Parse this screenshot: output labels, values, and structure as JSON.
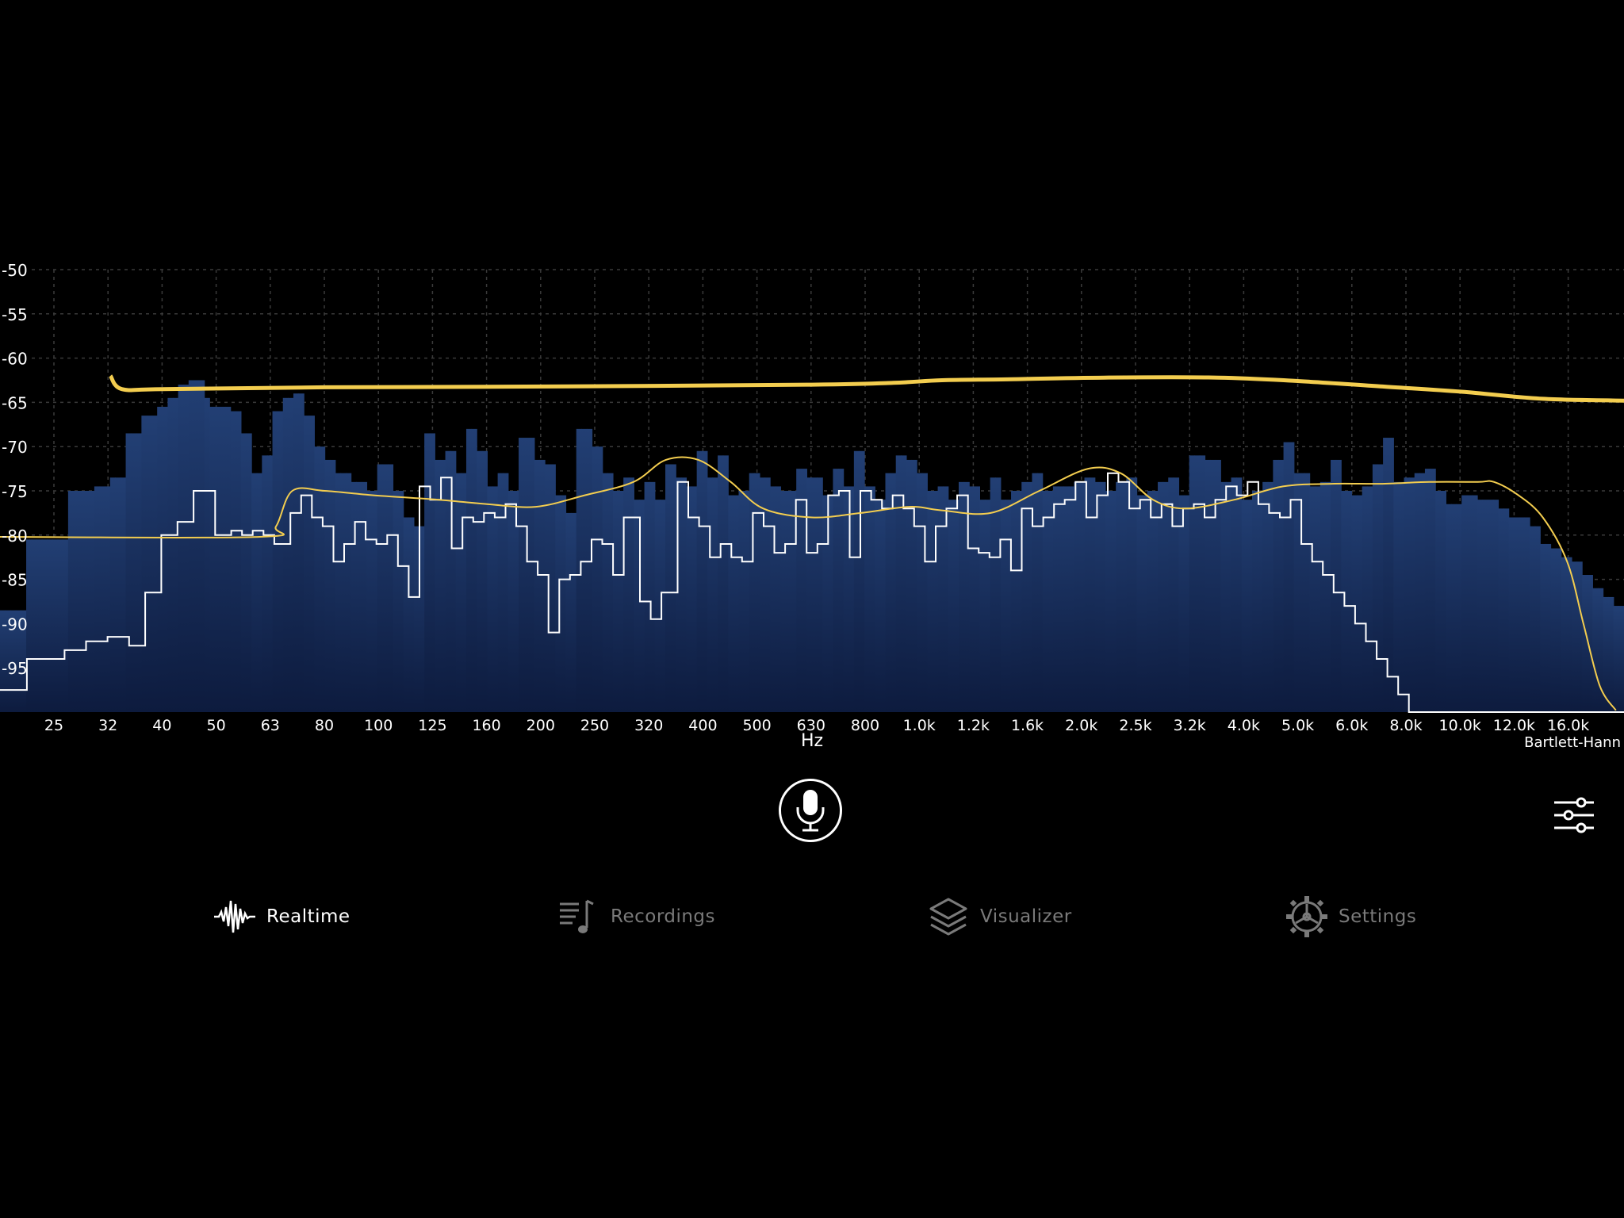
{
  "chart_data": {
    "type": "bar",
    "x_scale": "log",
    "x_unit": "Hz",
    "y_range": [
      -100,
      -50
    ],
    "grid": true,
    "y_ticks": [
      -50,
      -55,
      -60,
      -65,
      -70,
      -75,
      -80,
      -85,
      -90,
      -95
    ],
    "x_ticks": [
      "25",
      "32",
      "40",
      "50",
      "63",
      "80",
      "100",
      "125",
      "160",
      "200",
      "250",
      "320",
      "400",
      "500",
      "630",
      "800",
      "1.0k",
      "1.2k",
      "1.6k",
      "2.0k",
      "2.5k",
      "3.2k",
      "4.0k",
      "5.0k",
      "6.0k",
      "8.0k",
      "10.0k",
      "12.0k",
      "16.0k"
    ],
    "peak_bars": [
      -88.5,
      -88.5,
      -88.5,
      -88.5,
      -88.5,
      -80.5,
      -80.5,
      -80.5,
      -80.5,
      -80.5,
      -80.5,
      -80.5,
      -80.5,
      -75,
      -75,
      -75,
      -75,
      -75,
      -74.5,
      -74.5,
      -74.5,
      -73.5,
      -73.5,
      -73.5,
      -68.5,
      -68.5,
      -68.5,
      -66.5,
      -66.5,
      -66.5,
      -65.5,
      -65.5,
      -64.5,
      -64.5,
      -63,
      -63,
      -62.5,
      -62.5,
      -62.5,
      -64.5,
      -65.5,
      -65.5,
      -65.5,
      -65.5,
      -66,
      -66,
      -68.5,
      -68.5,
      -73,
      -73,
      -71,
      -71,
      -66,
      -66,
      -64.5,
      -64.5,
      -64,
      -64,
      -66.5,
      -66.5,
      -70,
      -70,
      -71.5,
      -71.5,
      -73,
      -73,
      -73,
      -74,
      -74,
      -74,
      -75,
      -75,
      -72,
      -72,
      -72,
      -75,
      -75,
      -78,
      -78,
      -79,
      -79,
      -68.5,
      -68.5,
      -71.5,
      -71.5,
      -70.5,
      -70.5,
      -73,
      -73,
      -68,
      -68,
      -70.5,
      -70.5,
      -74.5,
      -74.5,
      -73,
      -73,
      -75,
      -75,
      -69,
      -69,
      -69,
      -71.5,
      -71.5,
      -72,
      -72,
      -75.5,
      -75.5,
      -77.5,
      -77.5,
      -68,
      -68,
      -68,
      -70,
      -70,
      -73,
      -73,
      -75,
      -75,
      -73.5,
      -73.5,
      -76,
      -76,
      -74,
      -74,
      -76,
      -76,
      -72,
      -72,
      -73.5,
      -73.5,
      -74.5,
      -74.5,
      -70.5,
      -70.5,
      -73.5,
      -73.5,
      -71,
      -71,
      -75.5,
      -75.5,
      -75,
      -75,
      -73,
      -73,
      -73.5,
      -73.5,
      -74.5,
      -74.5,
      -75,
      -75,
      -75,
      -72.5,
      -72.5,
      -73.5,
      -73.5,
      -73.5,
      -75.5,
      -75.5,
      -72.5,
      -72.5,
      -74.5,
      -74.5,
      -70.5,
      -70.5,
      -74.5,
      -74.5,
      -76,
      -76,
      -73,
      -73,
      -71,
      -71,
      -71.5,
      -71.5,
      -73,
      -73,
      -75,
      -75,
      -74.5,
      -74.5,
      -76,
      -76,
      -74,
      -74,
      -74.5,
      -74.5,
      -76,
      -76,
      -73.5,
      -73.5,
      -76,
      -76,
      -75,
      -75,
      -74,
      -74,
      -73,
      -73,
      -75,
      -75,
      -74.5,
      -74.5,
      -74.5,
      -74.5,
      -74,
      -74,
      -73.5,
      -73.5,
      -74,
      -74,
      -75,
      -75,
      -74,
      -74,
      -73.5,
      -73.5,
      -75.5,
      -75.5,
      -75,
      -75,
      -74,
      -74,
      -73.5,
      -73.5,
      -75.5,
      -75.5,
      -71,
      -71,
      -71,
      -71.5,
      -71.5,
      -71.5,
      -74,
      -74,
      -73.5,
      -73.5,
      -76,
      -76,
      -75,
      -75,
      -74,
      -74,
      -71.5,
      -71.5,
      -69.5,
      -69.5,
      -73,
      -73,
      -73,
      -74.5,
      -74.5,
      -74,
      -74,
      -71.5,
      -71.5,
      -75,
      -75,
      -75.5,
      -75.5,
      -74.5,
      -74.5,
      -72,
      -72,
      -69,
      -69,
      -74,
      -74,
      -73.5,
      -73.5,
      -73,
      -73,
      -72.5,
      -72.5,
      -75,
      -75,
      -76.5,
      -76.5,
      -76.5,
      -75.5,
      -75.5,
      -75.5,
      -76,
      -76,
      -76,
      -76,
      -77,
      -77,
      -78,
      -78,
      -78,
      -78,
      -79,
      -79,
      -81,
      -81,
      -81.5,
      -81.5,
      -82.5,
      -82.5,
      -83,
      -83,
      -84.5,
      -84.5,
      -86,
      -86,
      -87,
      -87,
      -88,
      -88
    ],
    "current_level": [
      -97.5,
      -97.5,
      -97.5,
      -97.5,
      -97.5,
      -94,
      -94,
      -94,
      -94,
      -94,
      -94,
      -94,
      -93,
      -93,
      -93,
      -93,
      -92,
      -92,
      -92,
      -92,
      -91.5,
      -91.5,
      -91.5,
      -91.5,
      -92.5,
      -92.5,
      -92.5,
      -86.5,
      -86.5,
      -86.5,
      -80,
      -80,
      -80,
      -78.5,
      -78.5,
      -78.5,
      -75,
      -75,
      -75,
      -75,
      -80,
      -80,
      -80,
      -79.5,
      -79.5,
      -80,
      -80,
      -79.5,
      -79.5,
      -80,
      -80,
      -81,
      -81,
      -81,
      -77.5,
      -77.5,
      -75.5,
      -75.5,
      -78,
      -78,
      -79,
      -79,
      -83,
      -83,
      -81,
      -81,
      -78.5,
      -78.5,
      -80.5,
      -80.5,
      -81,
      -81,
      -80,
      -80,
      -83.5,
      -83.5,
      -87,
      -87,
      -74.5,
      -74.5,
      -76,
      -76,
      -73.5,
      -73.5,
      -81.5,
      -81.5,
      -78,
      -78,
      -78.5,
      -78.5,
      -77.5,
      -77.5,
      -78,
      -78,
      -76.5,
      -76.5,
      -79,
      -79,
      -83,
      -83,
      -84.5,
      -84.5,
      -91,
      -91,
      -85,
      -85,
      -84.5,
      -84.5,
      -83,
      -83,
      -80.5,
      -80.5,
      -81,
      -81,
      -84.5,
      -84.5,
      -78,
      -78,
      -78,
      -87.5,
      -87.5,
      -89.5,
      -89.5,
      -86.5,
      -86.5,
      -86.5,
      -74,
      -74,
      -78,
      -78,
      -79,
      -79,
      -82.5,
      -82.5,
      -81,
      -81,
      -82.5,
      -82.5,
      -83,
      -83,
      -77.5,
      -77.5,
      -79,
      -79,
      -82,
      -82,
      -81,
      -81,
      -76,
      -76,
      -82,
      -82,
      -81,
      -81,
      -75.5,
      -75.5,
      -75,
      -75,
      -82.5,
      -82.5,
      -75,
      -75,
      -76,
      -76,
      -77,
      -77,
      -75.5,
      -75.5,
      -77,
      -77,
      -79,
      -79,
      -83,
      -83,
      -79,
      -79,
      -77,
      -77,
      -75.5,
      -75.5,
      -81.5,
      -81.5,
      -82,
      -82,
      -82.5,
      -82.5,
      -80.5,
      -80.5,
      -84,
      -84,
      -77,
      -77,
      -79,
      -79,
      -78,
      -78,
      -76.5,
      -76.5,
      -76,
      -76,
      -74,
      -74,
      -78,
      -78,
      -75.5,
      -75.5,
      -73,
      -73,
      -74,
      -74,
      -77,
      -77,
      -76,
      -76,
      -78,
      -78,
      -76.5,
      -76.5,
      -79,
      -79,
      -77,
      -77,
      -76.5,
      -76.5,
      -78,
      -78,
      -76,
      -76,
      -74.5,
      -74.5,
      -75.5,
      -75.5,
      -74,
      -74,
      -76.5,
      -76.5,
      -77.5,
      -77.5,
      -78,
      -78,
      -76,
      -76,
      -81,
      -81,
      -83,
      -83,
      -84.5,
      -84.5,
      -86.5,
      -86.5,
      -88,
      -88,
      -90,
      -90,
      -92,
      -92,
      -94,
      -94,
      -96,
      -96,
      -98,
      -98,
      -100,
      -100,
      -100,
      -100,
      -100,
      -100,
      -100,
      -100,
      -100,
      -100,
      -100,
      -100,
      -100,
      -100,
      -100,
      -100,
      -100,
      -100,
      -100,
      -100,
      -100,
      -100,
      -100,
      -100,
      -100,
      -100,
      -100,
      -100,
      -100,
      -100,
      -100,
      -100,
      -100,
      -100,
      -100,
      -100,
      -100,
      -100,
      -100,
      -100
    ],
    "peak_hold_curve": [
      [
        0.068,
        -62
      ],
      [
        0.075,
        -63.5
      ],
      [
        0.1,
        -63.5
      ],
      [
        0.2,
        -63.3
      ],
      [
        0.35,
        -63.2
      ],
      [
        0.5,
        -63
      ],
      [
        0.55,
        -62.8
      ],
      [
        0.58,
        -62.5
      ],
      [
        0.62,
        -62.4
      ],
      [
        0.68,
        -62.2
      ],
      [
        0.75,
        -62.2
      ],
      [
        0.8,
        -62.6
      ],
      [
        0.85,
        -63.2
      ],
      [
        0.9,
        -63.8
      ],
      [
        0.95,
        -64.6
      ],
      [
        1.0,
        -64.8
      ]
    ],
    "average_curve": [
      [
        0.0,
        -80.2
      ],
      [
        0.16,
        -80.2
      ],
      [
        0.17,
        -79
      ],
      [
        0.18,
        -75
      ],
      [
        0.2,
        -75
      ],
      [
        0.23,
        -75.5
      ],
      [
        0.27,
        -76
      ],
      [
        0.3,
        -76.5
      ],
      [
        0.33,
        -76.8
      ],
      [
        0.36,
        -75.5
      ],
      [
        0.39,
        -74
      ],
      [
        0.41,
        -71.5
      ],
      [
        0.43,
        -71.5
      ],
      [
        0.45,
        -74
      ],
      [
        0.47,
        -77
      ],
      [
        0.5,
        -78
      ],
      [
        0.53,
        -77.5
      ],
      [
        0.56,
        -76.8
      ],
      [
        0.58,
        -77.2
      ],
      [
        0.61,
        -77.5
      ],
      [
        0.64,
        -75
      ],
      [
        0.67,
        -72.5
      ],
      [
        0.69,
        -73
      ],
      [
        0.71,
        -76
      ],
      [
        0.73,
        -77
      ],
      [
        0.76,
        -76
      ],
      [
        0.79,
        -74.5
      ],
      [
        0.82,
        -74.2
      ],
      [
        0.85,
        -74.2
      ],
      [
        0.88,
        -74
      ],
      [
        0.91,
        -74
      ],
      [
        0.92,
        -74
      ],
      [
        0.935,
        -75.5
      ],
      [
        0.95,
        -78
      ],
      [
        0.965,
        -83
      ],
      [
        0.975,
        -90
      ],
      [
        0.985,
        -97
      ],
      [
        0.995,
        -99.8
      ]
    ]
  },
  "axis_unit": "Hz",
  "window_function": "Bartlett-Hann",
  "mic_icon": "microphone-icon",
  "filter_icon": "sliders-icon",
  "tabs": [
    {
      "label": "Realtime",
      "icon": "waveform-icon",
      "active": true
    },
    {
      "label": "Recordings",
      "icon": "music-list-icon",
      "active": false
    },
    {
      "label": "Visualizer",
      "icon": "layers-icon",
      "active": false
    },
    {
      "label": "Settings",
      "icon": "gear-icon",
      "active": false
    }
  ],
  "colors": {
    "background": "#000000",
    "bar_top": "#1f3c6e",
    "bar_bottom": "#0e1f45",
    "current_line": "#ffffff",
    "curve": "#f3cd4f",
    "inactive_text": "#7a7a7a"
  }
}
